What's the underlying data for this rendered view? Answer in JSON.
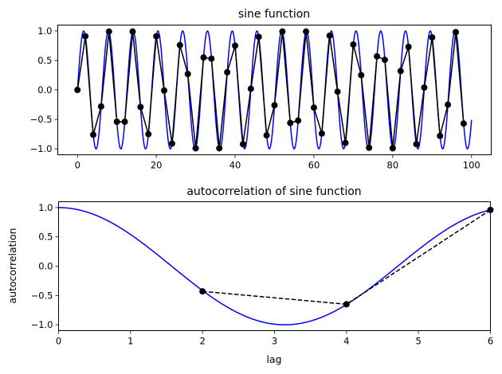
{
  "chart_data": [
    {
      "type": "line",
      "title": "sine function",
      "xlabel": "",
      "ylabel": "",
      "xlim": [
        -5,
        105
      ],
      "ylim": [
        -1.1,
        1.1
      ],
      "xticks": [
        "0",
        "20",
        "40",
        "60",
        "80",
        "100"
      ],
      "yticks": [
        "−1.0",
        "−0.5",
        "0.0",
        "0.5",
        "1.0"
      ],
      "grid": false,
      "series": [
        {
          "style": "continuous",
          "color": "#0000ff",
          "function": "sin(x)",
          "x_range": [
            0,
            100
          ]
        },
        {
          "style": "line-with-markers",
          "color": "#000000",
          "x": [
            0,
            2,
            4,
            6,
            8,
            10,
            12,
            14,
            16,
            18,
            20,
            22,
            24,
            26,
            28,
            30,
            32,
            34,
            36,
            38,
            40,
            42,
            44,
            46,
            48,
            50,
            52,
            54,
            56,
            58,
            60,
            62,
            64,
            66,
            68,
            70,
            72,
            74,
            76,
            78,
            80,
            82,
            84,
            86,
            88,
            90,
            92,
            94,
            96,
            98
          ],
          "y": [
            0.0,
            0.91,
            -0.76,
            -0.28,
            0.99,
            -0.54,
            -0.54,
            0.99,
            -0.29,
            -0.75,
            0.91,
            -0.01,
            -0.91,
            0.76,
            0.27,
            -0.99,
            0.55,
            0.53,
            -0.99,
            0.3,
            0.75,
            -0.92,
            0.02,
            0.9,
            -0.77,
            -0.26,
            0.99,
            -0.56,
            -0.52,
            0.99,
            -0.3,
            -0.74,
            0.92,
            -0.03,
            -0.9,
            0.77,
            0.25,
            -0.98,
            0.57,
            0.51,
            -0.99,
            0.32,
            0.73,
            -0.92,
            0.04,
            0.89,
            -0.78,
            -0.25,
            0.98,
            -0.57
          ]
        }
      ]
    },
    {
      "type": "line",
      "title": "autocorrelation of sine function",
      "xlabel": "lag",
      "ylabel": "autocorrelation",
      "xlim": [
        0,
        6
      ],
      "ylim": [
        -1.1,
        1.1
      ],
      "xticks": [
        "0",
        "1",
        "2",
        "3",
        "4",
        "5",
        "6"
      ],
      "yticks": [
        "−1.0",
        "−0.5",
        "0.0",
        "0.5",
        "1.0"
      ],
      "grid": false,
      "series": [
        {
          "style": "continuous",
          "color": "#0000ff",
          "function": "cos(x)",
          "x_range": [
            0,
            6
          ]
        },
        {
          "style": "dashed-with-markers",
          "color": "#000000",
          "x": [
            2,
            4,
            6
          ],
          "y": [
            -0.43,
            -0.65,
            0.96
          ]
        }
      ]
    }
  ]
}
